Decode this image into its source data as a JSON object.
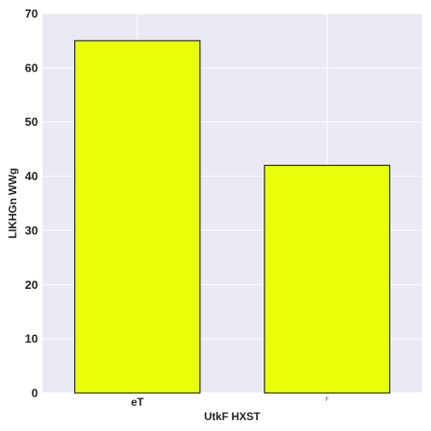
{
  "chart_data": {
    "type": "bar",
    "categories": [
      "eT",
      "F"
    ],
    "values": [
      65,
      42
    ],
    "title": "",
    "xlabel": "UtkF  HXST",
    "ylabel": "LIKHGn WWg",
    "ylim": [
      0,
      70
    ],
    "yticks": [
      0,
      10,
      20,
      30,
      40,
      50,
      60,
      70
    ],
    "grid": true,
    "legend": "none",
    "colors": {
      "bar_fill": "#eaff0a",
      "bar_edge": "#000000",
      "plot_background": "#e8e9f3",
      "grid": "#ffffff"
    }
  }
}
